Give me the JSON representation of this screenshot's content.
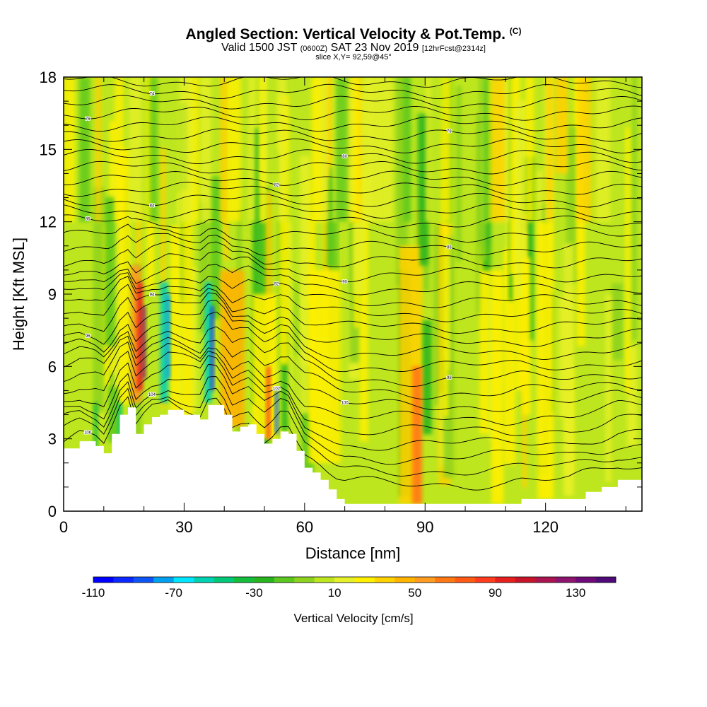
{
  "header": {
    "title": "Angled Section: Vertical Velocity & Pot.Temp.",
    "title_suffix": "(C)",
    "valid_prefix": "Valid 1500 JST",
    "valid_zulu": "(0600Z)",
    "valid_date": "SAT 23 Nov 2019",
    "forecast": "[12hrFcst@2314z]",
    "slice": "slice X,Y= 92,59@45°"
  },
  "chart_data": {
    "type": "heatmap",
    "xlabel": "Distance [nm]",
    "ylabel": "Height [Kft MSL]",
    "xlim": [
      0,
      144
    ],
    "ylim": [
      0,
      18
    ],
    "x_ticks": [
      0,
      30,
      60,
      90,
      120
    ],
    "y_ticks": [
      0,
      3,
      6,
      9,
      12,
      15,
      18
    ],
    "x_tick_labels": [
      "0",
      "30",
      "60",
      "90",
      "120"
    ],
    "y_tick_labels": [
      "0",
      "3",
      "6",
      "9",
      "12",
      "15",
      "18"
    ],
    "colorbar": {
      "title": "Vertical Velocity [cm/s]",
      "min": -110,
      "max": 150,
      "step": 10,
      "tick_values": [
        -110,
        -70,
        -30,
        10,
        50,
        90,
        130
      ],
      "tick_labels": [
        "-110",
        "-70",
        "-30",
        "10",
        "50",
        "90",
        "130"
      ],
      "colors": [
        "#0000ff",
        "#0a28ff",
        "#0f55f5",
        "#00a0f0",
        "#00e6ff",
        "#00d2b4",
        "#00c878",
        "#14be3c",
        "#28b41e",
        "#5ac81e",
        "#8cd21e",
        "#bee61e",
        "#e6f028",
        "#fff000",
        "#ffd200",
        "#ffb400",
        "#ff9b1e",
        "#ff7814",
        "#ff5a14",
        "#ff3c1e",
        "#e61e1e",
        "#c81428",
        "#aa1450",
        "#8c146e",
        "#6e0a78",
        "#500a78"
      ]
    },
    "terrain": {
      "x": [
        0,
        4,
        8,
        10,
        12,
        14,
        16,
        18,
        20,
        22,
        24,
        26,
        30,
        34,
        36,
        38,
        40,
        42,
        44,
        46,
        48,
        50,
        52,
        54,
        56,
        58,
        60,
        62,
        64,
        66,
        68,
        70,
        74,
        78,
        82,
        86,
        90,
        94,
        98,
        102,
        106,
        110,
        114,
        118,
        122,
        126,
        130,
        134,
        138,
        144
      ],
      "y": [
        2.6,
        2.9,
        2.7,
        2.4,
        3.2,
        4.0,
        4.3,
        3.2,
        3.6,
        3.9,
        4.0,
        4.2,
        4.0,
        3.8,
        4.4,
        4.4,
        4.0,
        3.3,
        3.5,
        3.6,
        3.2,
        2.8,
        3.0,
        3.3,
        3.2,
        2.5,
        1.8,
        1.6,
        1.3,
        0.9,
        0.5,
        0.3,
        0.3,
        0.3,
        0.3,
        0.3,
        0.3,
        0.3,
        0.3,
        0.3,
        0.3,
        0.3,
        0.5,
        0.5,
        0.5,
        0.5,
        0.8,
        1.0,
        1.3,
        1.3
      ]
    },
    "contour_labels": [
      "44",
      "46",
      "48",
      "50",
      "52",
      "54",
      "56",
      "58",
      "60",
      "62",
      "64",
      "66",
      "68",
      "70",
      "72",
      "74",
      "76",
      "78",
      "80",
      "82",
      "84",
      "86",
      "88",
      "90",
      "92",
      "94",
      "96",
      "98",
      "100",
      "102",
      "104",
      "106"
    ]
  }
}
